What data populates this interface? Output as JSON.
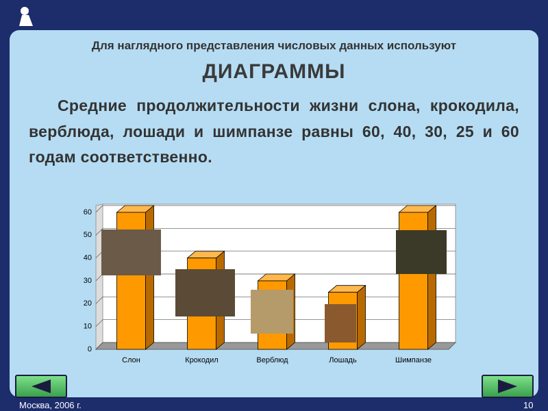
{
  "header": {
    "subtitle": "Для наглядного представления числовых данных используют",
    "title": "ДИАГРАММЫ"
  },
  "text": "Средние продолжительности жизни слона, крокодила, верблюда, лошади и шимпанзе равны 60, 40, 30, 25 и 60 годам соответственно.",
  "chart_data": {
    "type": "bar",
    "categories": [
      "Слон",
      "Крокодил",
      "Верблюд",
      "Лошадь",
      "Шимпанзе"
    ],
    "values": [
      60,
      40,
      30,
      25,
      60
    ],
    "color": "#ff9900",
    "ylim": [
      0,
      60
    ],
    "yticks": [
      0,
      10,
      20,
      30,
      40,
      50,
      60
    ],
    "grid": true
  },
  "footer": {
    "left": "Москва, 2006 г.",
    "page": "10"
  }
}
